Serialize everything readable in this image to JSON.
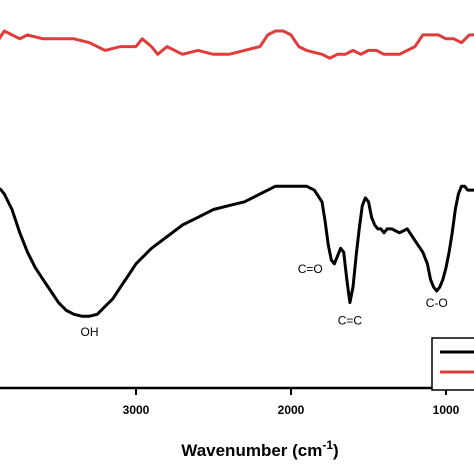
{
  "chart_data": {
    "type": "line",
    "title": "",
    "xlabel": "Wavenumber (cm",
    "xlabel_sup": "-1",
    "xlabel_close": ")",
    "ylabel": "",
    "x_reversed": true,
    "xlim": [
      4000,
      800
    ],
    "x_ticks": [
      3000,
      2000,
      1000
    ],
    "x_tick_labels": [
      "3000",
      "2000",
      "1000"
    ],
    "colors": {
      "series1": "#e03c3c",
      "series2": "#000000"
    },
    "series": [
      {
        "color": "#e03c3c",
        "x": [
          4000,
          3950,
          3900,
          3850,
          3800,
          3750,
          3700,
          3600,
          3500,
          3400,
          3300,
          3200,
          3100,
          3000,
          2960,
          2930,
          2900,
          2860,
          2800,
          2700,
          2600,
          2500,
          2400,
          2300,
          2200,
          2150,
          2100,
          2050,
          2000,
          1950,
          1900,
          1800,
          1750,
          1700,
          1650,
          1600,
          1550,
          1500,
          1450,
          1400,
          1300,
          1200,
          1150,
          1100,
          1050,
          1000,
          950,
          900,
          850,
          800
        ],
        "y": [
          92,
          91,
          89,
          92,
          91,
          90,
          91,
          90,
          90,
          90,
          89,
          87,
          88,
          88,
          90,
          89,
          88,
          86,
          88,
          86,
          87,
          86,
          86,
          87,
          88,
          91,
          92,
          92,
          91,
          88,
          87,
          86,
          85,
          86,
          86,
          87,
          86,
          87,
          87,
          86,
          86,
          88,
          91,
          91,
          91,
          90,
          90,
          89,
          91,
          91
        ]
      },
      {
        "color": "#000000",
        "x": [
          4000,
          3950,
          3900,
          3870,
          3850,
          3800,
          3750,
          3700,
          3650,
          3600,
          3550,
          3500,
          3450,
          3400,
          3350,
          3300,
          3250,
          3200,
          3150,
          3100,
          3050,
          3000,
          2900,
          2800,
          2700,
          2600,
          2500,
          2400,
          2300,
          2200,
          2100,
          2000,
          1950,
          1900,
          1850,
          1800,
          1780,
          1760,
          1740,
          1720,
          1700,
          1680,
          1660,
          1640,
          1620,
          1600,
          1580,
          1560,
          1540,
          1520,
          1500,
          1480,
          1460,
          1440,
          1420,
          1400,
          1380,
          1350,
          1300,
          1250,
          1200,
          1150,
          1120,
          1100,
          1080,
          1060,
          1040,
          1020,
          1000,
          980,
          960,
          940,
          920,
          900,
          880,
          860,
          840,
          820,
          800
        ],
        "y": [
          52,
          52,
          52,
          51,
          50,
          46,
          40,
          35,
          31,
          28,
          25,
          22,
          20,
          19,
          18.5,
          18.5,
          19,
          21,
          23,
          26,
          29,
          32,
          36,
          39,
          42,
          44,
          46,
          47,
          48,
          50,
          52,
          52,
          52,
          52,
          51,
          48,
          43,
          37,
          33,
          32,
          34,
          36,
          35,
          28,
          22,
          26,
          34,
          41,
          47,
          49,
          48,
          44,
          42,
          41,
          41,
          40,
          41,
          41,
          40,
          41,
          38,
          35,
          32,
          28,
          26,
          25,
          26,
          28,
          31,
          35,
          40,
          46,
          50,
          52,
          52,
          51,
          51,
          51,
          51
        ]
      }
    ],
    "annotations": [
      {
        "text": "OH",
        "x": 3300,
        "y": 18.5
      },
      {
        "text": "C=O",
        "x": 1760,
        "y": 32
      },
      {
        "text": "C=C",
        "x": 1620,
        "y": 22
      },
      {
        "text": "C-O",
        "x": 1060,
        "y": 25
      }
    ],
    "legend": {
      "placement": "bottom-right",
      "colors": [
        "#000000",
        "#e03c3c"
      ]
    },
    "grid": false
  }
}
